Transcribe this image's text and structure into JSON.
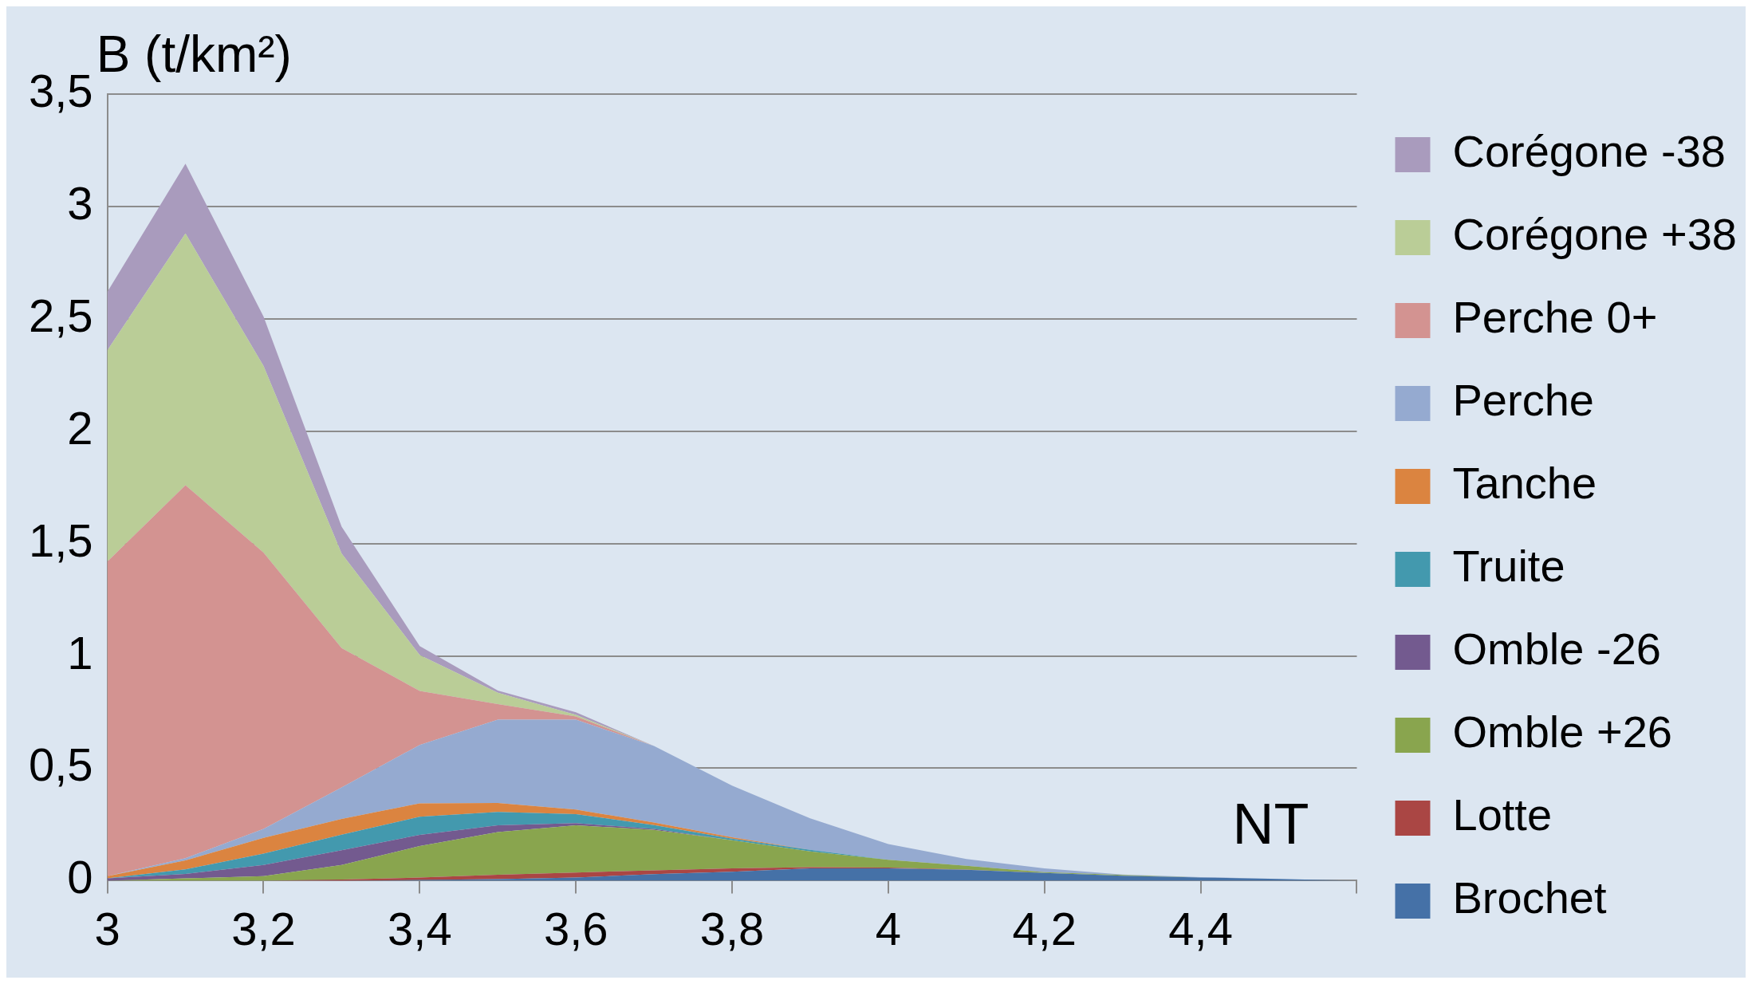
{
  "chart_data": {
    "type": "area",
    "stacked": true,
    "ylabel": "B (t/km²)",
    "xlabel": "NT",
    "x": [
      3.0,
      3.1,
      3.2,
      3.3,
      3.4,
      3.5,
      3.6,
      3.7,
      3.8,
      3.9,
      4.0,
      4.1,
      4.2,
      4.3,
      4.4,
      4.5,
      4.6
    ],
    "series": [
      {
        "name": "Brochet",
        "color": "#4571a7",
        "values": [
          0,
          0,
          0,
          0,
          0.003,
          0.007,
          0.014,
          0.029,
          0.04,
          0.055,
          0.055,
          0.048,
          0.034,
          0.022,
          0.014,
          0.008,
          0
        ]
      },
      {
        "name": "Lotte",
        "color": "#aa4644",
        "values": [
          0,
          0,
          0,
          0.005,
          0.011,
          0.019,
          0.022,
          0.017,
          0.015,
          0.005,
          0.003,
          0.001,
          0,
          0,
          0,
          0,
          0
        ]
      },
      {
        "name": "Omble +26",
        "color": "#89a54e",
        "values": [
          0,
          0.01,
          0.02,
          0.065,
          0.14,
          0.19,
          0.21,
          0.18,
          0.125,
          0.07,
          0.035,
          0.017,
          0.004,
          0.003,
          0,
          0,
          0
        ]
      },
      {
        "name": "Omble -26",
        "color": "#735a8f",
        "values": [
          0.01,
          0.02,
          0.05,
          0.065,
          0.05,
          0.03,
          0.01,
          0.004,
          0,
          0,
          0,
          0,
          0,
          0,
          0,
          0,
          0
        ]
      },
      {
        "name": "Truite",
        "color": "#4399ae",
        "values": [
          0,
          0.02,
          0.05,
          0.07,
          0.08,
          0.06,
          0.04,
          0.017,
          0.007,
          0.007,
          0,
          0,
          0,
          0,
          0,
          0,
          0
        ]
      },
      {
        "name": "Tanche",
        "color": "#db8440",
        "values": [
          0.01,
          0.04,
          0.07,
          0.07,
          0.06,
          0.04,
          0.02,
          0.012,
          0.006,
          0,
          0,
          0,
          0,
          0,
          0,
          0,
          0
        ]
      },
      {
        "name": "Perche",
        "color": "#95aad0",
        "values": [
          0,
          0.01,
          0.04,
          0.14,
          0.26,
          0.37,
          0.4,
          0.34,
          0.23,
          0.14,
          0.07,
          0.03,
          0.017,
          0.002,
          0.002,
          0,
          0
        ]
      },
      {
        "name": "Perche 0+",
        "color": "#d39391",
        "values": [
          1.4,
          1.66,
          1.23,
          0.62,
          0.24,
          0.07,
          0.015,
          0,
          0,
          0,
          0,
          0,
          0,
          0,
          0,
          0,
          0
        ]
      },
      {
        "name": "Corégone +38",
        "color": "#bacd97",
        "values": [
          0.94,
          1.12,
          0.83,
          0.42,
          0.16,
          0.05,
          0.007,
          0,
          0,
          0,
          0,
          0,
          0,
          0,
          0,
          0,
          0
        ]
      },
      {
        "name": "Corégone -38",
        "color": "#a99bbd",
        "values": [
          0.26,
          0.31,
          0.22,
          0.12,
          0.04,
          0.01,
          0.011,
          0,
          0,
          0,
          0,
          0,
          0,
          0,
          0,
          0,
          0
        ]
      }
    ],
    "xlim": [
      3,
      4.6
    ],
    "xticks": [
      3,
      {
        "value": 3.2,
        "label": "3,2"
      },
      {
        "value": 3.4,
        "label": "3,4"
      },
      {
        "value": 3.6,
        "label": "3,6"
      },
      {
        "value": 3.8,
        "label": "3,8"
      },
      4,
      {
        "value": 4.2,
        "label": "4,2"
      },
      {
        "value": 4.4,
        "label": "4,4"
      },
      {
        "value": 4.6,
        "label": null
      }
    ],
    "ylim": [
      0,
      3.5
    ],
    "yticks": [
      0,
      {
        "value": 0.5,
        "label": "0,5"
      },
      1,
      {
        "value": 1.5,
        "label": "1,5"
      },
      2,
      {
        "value": 2.5,
        "label": "2,5"
      },
      3,
      {
        "value": 3.5,
        "label": "3,5"
      }
    ],
    "grid": "y",
    "legend": "right"
  }
}
